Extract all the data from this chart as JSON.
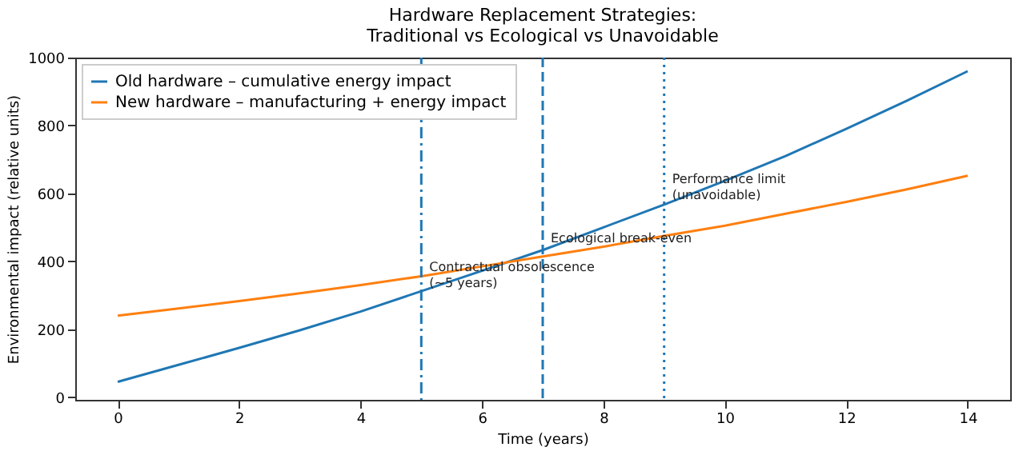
{
  "chart_data": {
    "type": "line",
    "title": "Hardware Replacement Strategies:\nTraditional vs Ecological vs Unavoidable",
    "xlabel": "Time (years)",
    "ylabel": "Environmental impact (relative units)",
    "x": [
      0,
      1,
      2,
      3,
      4,
      5,
      6,
      7,
      8,
      9,
      10,
      11,
      12,
      13,
      14
    ],
    "series": [
      {
        "name": "Old hardware – cumulative energy impact",
        "color": "#1f77b4",
        "values": [
          45,
          95,
          145,
          197,
          252,
          312,
          372,
          433,
          500,
          567,
          637,
          710,
          790,
          873,
          960
        ]
      },
      {
        "name": "New hardware – manufacturing + energy impact",
        "color": "#ff7f0e",
        "values": [
          240,
          261,
          283,
          306,
          330,
          356,
          385,
          414,
          443,
          475,
          505,
          540,
          575,
          612,
          652
        ]
      }
    ],
    "xlim": [
      -0.7,
      14.7
    ],
    "xticks": [
      0,
      2,
      4,
      6,
      8,
      10,
      12,
      14
    ],
    "ylim": [
      -8,
      1000
    ],
    "yticks": [
      0,
      200,
      400,
      600,
      800,
      1000
    ],
    "ref_lines": [
      {
        "axis": "x",
        "value": 5,
        "color": "#1f77b4",
        "line_style": "dashdot"
      },
      {
        "axis": "x",
        "value": 7,
        "color": "#1f77b4",
        "line_style": "dashed"
      },
      {
        "axis": "x",
        "value": 9,
        "color": "#1f77b4",
        "line_style": "dotted"
      }
    ],
    "annotations": [
      {
        "text": "Contractual obsolescence\n(~5 years)",
        "x": 5,
        "y": 362
      },
      {
        "text": "Ecological break-even",
        "x": 7,
        "y": 446
      },
      {
        "text": "Performance limit\n(unavoidable)",
        "x": 9,
        "y": 620
      }
    ],
    "legend": "top left",
    "grid": false,
    "marker": "none",
    "line_style": "solid"
  }
}
